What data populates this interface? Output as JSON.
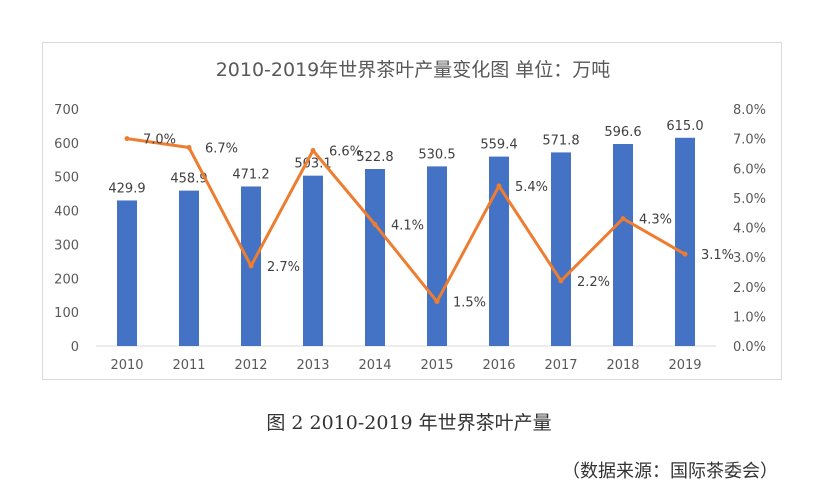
{
  "caption": "图 2 2010-2019 年世界茶叶产量",
  "source": "（数据来源：国际茶委会）",
  "chart_data": {
    "type": "bar",
    "title": "2010-2019年世界茶叶产量变化图      单位：万吨",
    "categories": [
      "2010",
      "2011",
      "2012",
      "2013",
      "2014",
      "2015",
      "2016",
      "2017",
      "2018",
      "2019"
    ],
    "series": [
      {
        "type": "bar",
        "values": [
          429.9,
          458.9,
          471.2,
          503.1,
          522.8,
          530.5,
          559.4,
          571.8,
          596.6,
          615.0
        ],
        "labels": [
          "429.9",
          "458.9",
          "471.2",
          "503.1",
          "522.8",
          "530.5",
          "559.4",
          "571.8",
          "596.6",
          "615.0"
        ],
        "color": "#4472c4",
        "axis": "left"
      },
      {
        "type": "line",
        "values": [
          7.0,
          6.7,
          2.7,
          6.6,
          4.1,
          1.5,
          5.4,
          2.2,
          4.3,
          3.1
        ],
        "labels": [
          "7.0%",
          "6.7%",
          "2.7%",
          "6.6%",
          "4.1%",
          "1.5%",
          "5.4%",
          "2.2%",
          "4.3%",
          "3.1%"
        ],
        "color": "#ed7d31",
        "axis": "right"
      }
    ],
    "ylim": [
      0,
      700
    ],
    "yticks": [
      "0",
      "100",
      "200",
      "300",
      "400",
      "500",
      "600",
      "700"
    ],
    "y2lim": [
      0,
      8
    ],
    "y2ticks": [
      "0.0%",
      "1.0%",
      "2.0%",
      "3.0%",
      "4.0%",
      "5.0%",
      "6.0%",
      "7.0%",
      "8.0%"
    ],
    "grid": false,
    "legend": "none"
  }
}
